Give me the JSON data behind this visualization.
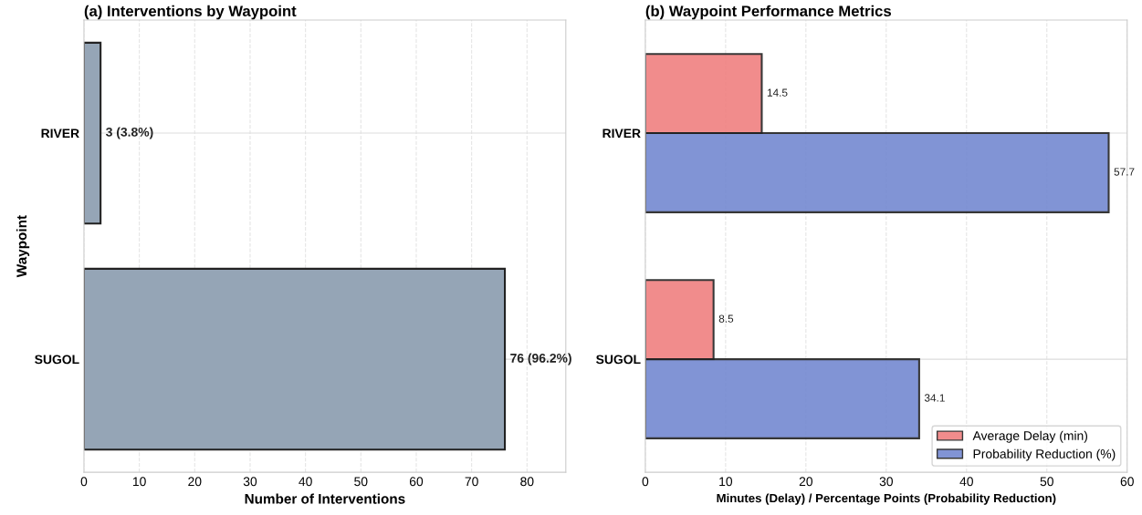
{
  "chart_data": [
    {
      "type": "bar",
      "orientation": "horizontal",
      "title": "(a) Interventions by Waypoint",
      "xlabel": "Number of Interventions",
      "ylabel": "Waypoint",
      "categories": [
        "RIVER",
        "SUGOL"
      ],
      "values": [
        3,
        76
      ],
      "color": "#95a5b6",
      "value_labels": [
        "3 (3.8%)",
        "76 (96.2%)"
      ],
      "xlim": [
        0,
        87
      ],
      "xticks": [
        0,
        10,
        20,
        30,
        40,
        50,
        60,
        70,
        80
      ],
      "grid": true,
      "legend": false
    },
    {
      "type": "bar",
      "orientation": "horizontal",
      "title": "(b) Waypoint Performance Metrics",
      "xlabel": "Minutes (Delay) / Percentage Points (Probability Reduction)",
      "categories": [
        "RIVER",
        "SUGOL"
      ],
      "series": [
        {
          "name": "Average Delay (min)",
          "color": "#f08080",
          "values": [
            14.5,
            8.5
          ]
        },
        {
          "name": "Probability Reduction (%)",
          "color": "#7489d1",
          "values": [
            57.7,
            34.1
          ]
        }
      ],
      "data_labels": true,
      "xlim": [
        0,
        60
      ],
      "xticks": [
        0,
        10,
        20,
        30,
        40,
        50,
        60
      ],
      "grid": true,
      "legend": "bottom right"
    }
  ]
}
